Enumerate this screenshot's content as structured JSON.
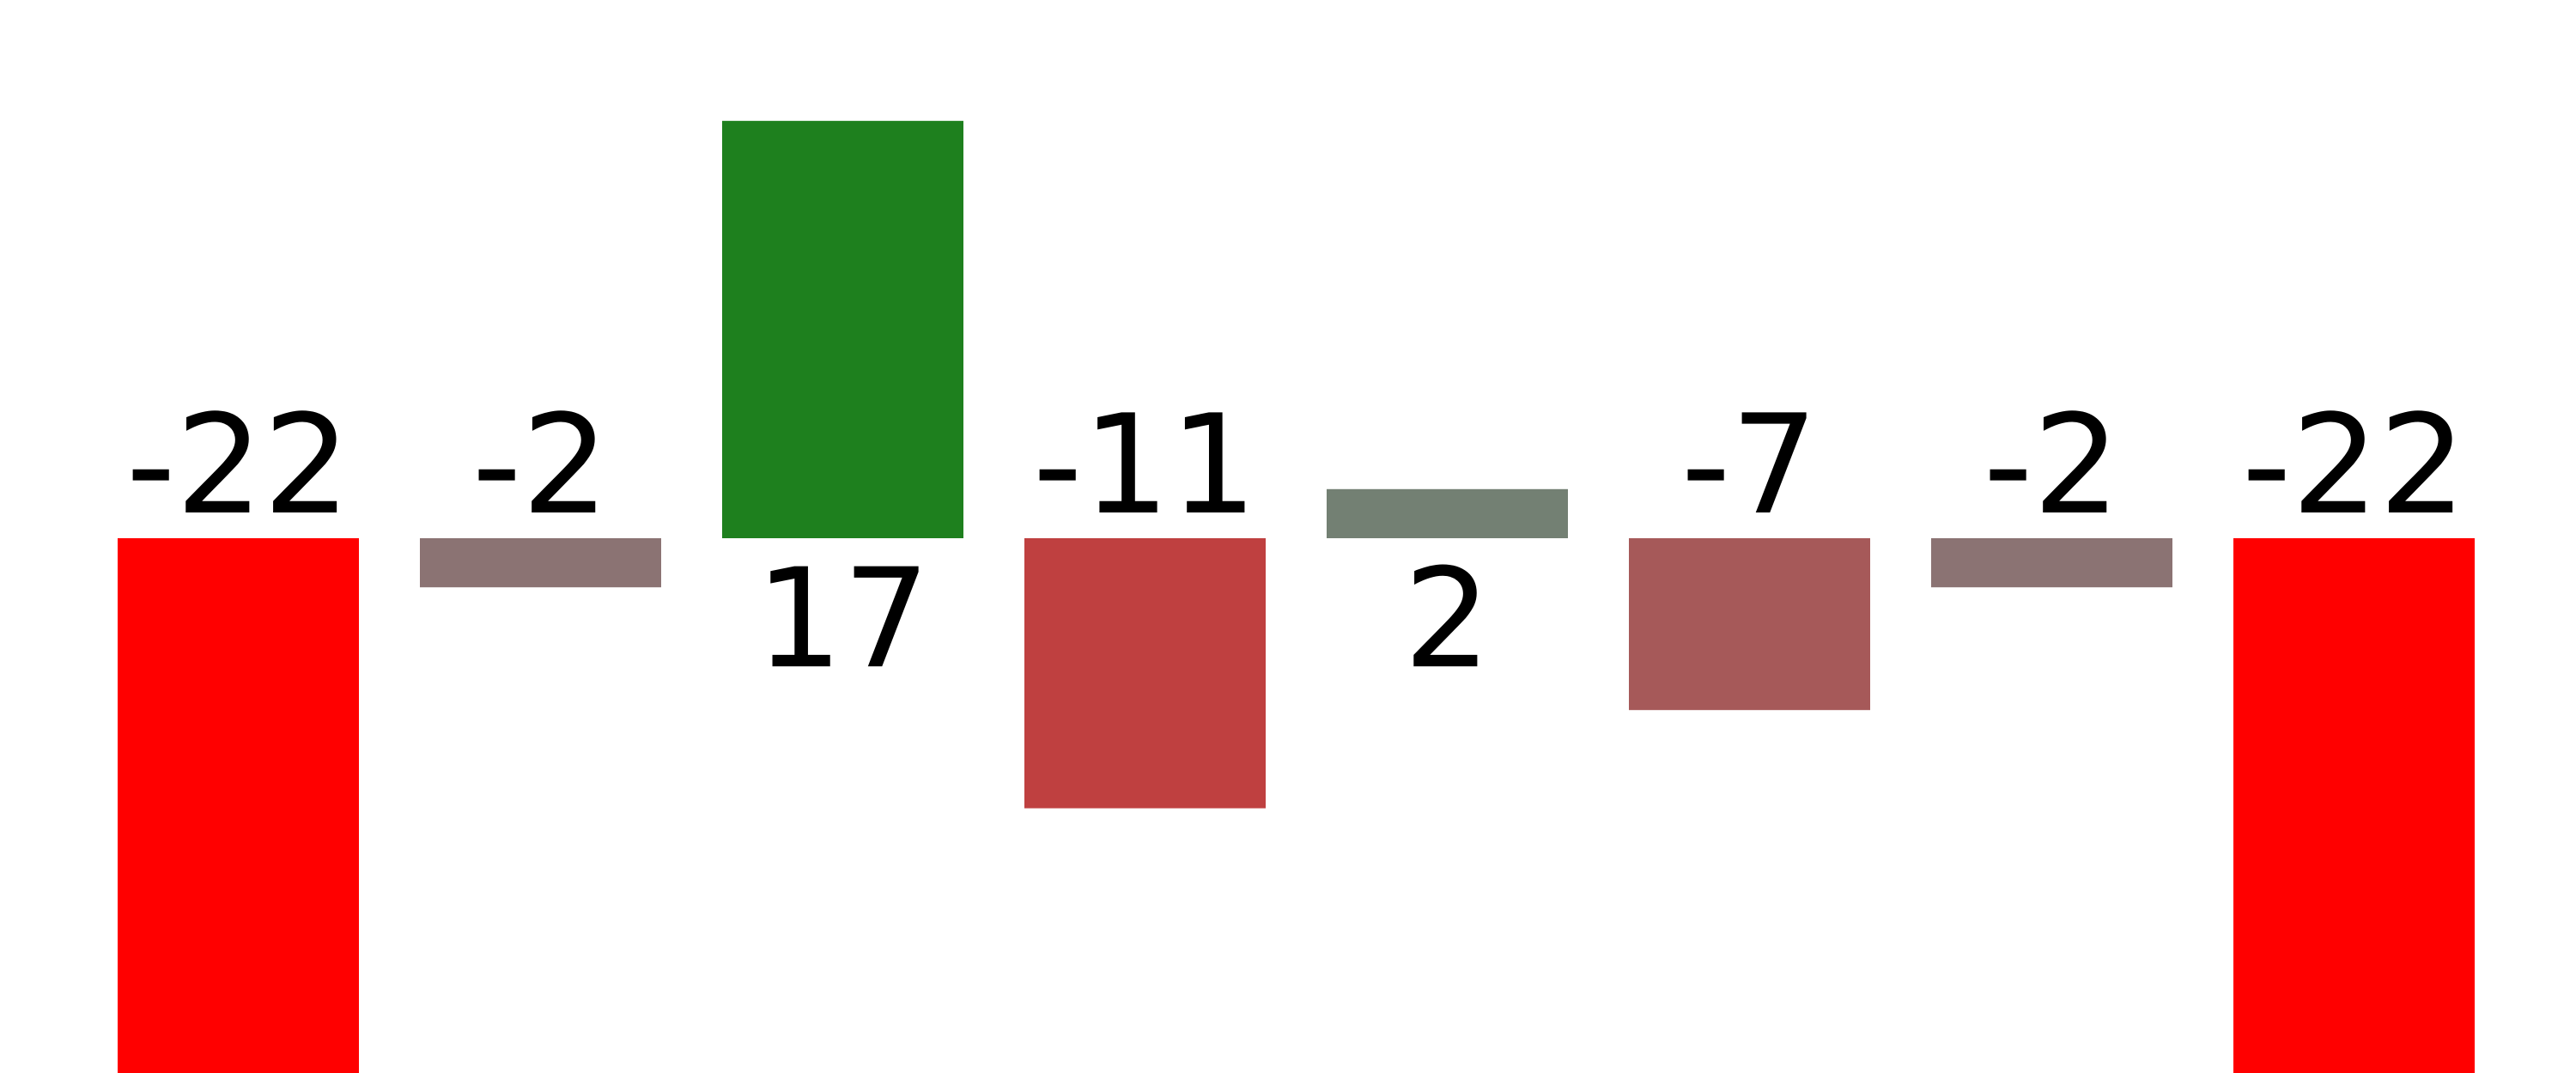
{
  "chart_data": {
    "type": "bar",
    "title": "",
    "xlabel": "",
    "ylabel": "",
    "ylim": [
      -22,
      17
    ],
    "grid": false,
    "legend": "none",
    "values": [
      -22,
      -2,
      17,
      -11,
      2,
      -7,
      -2,
      -22
    ],
    "labels": [
      "-22",
      "-2",
      "17",
      "-11",
      "2",
      "-7",
      "-2",
      "-22"
    ],
    "colors": [
      "#ff0000",
      "#8b7373",
      "#1e801e",
      "#bf4040",
      "#738073",
      "#a65959",
      "#8b7373",
      "#ff0000"
    ]
  }
}
